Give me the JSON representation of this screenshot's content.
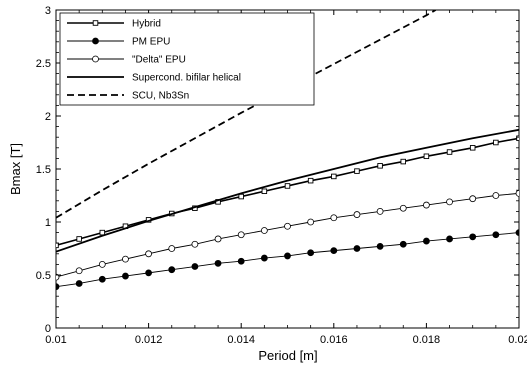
{
  "chart_data": {
    "type": "line",
    "title": "",
    "xlabel": "Period [m]",
    "ylabel": "Bmax [T]",
    "xlim": [
      0.01,
      0.02
    ],
    "ylim": [
      0,
      3
    ],
    "x_ticks": [
      "0.01",
      "0.012",
      "0.014",
      "0.016",
      "0.018",
      "0.02"
    ],
    "y_ticks": [
      "0",
      "0.5",
      "1",
      "1.5",
      "2",
      "2.5",
      "3"
    ],
    "grid": false,
    "legend_position": "top-left",
    "series": [
      {
        "name": "Hybrid",
        "style": "solid-open-square",
        "x": [
          0.01,
          0.0105,
          0.011,
          0.0115,
          0.012,
          0.0125,
          0.013,
          0.0135,
          0.014,
          0.0145,
          0.015,
          0.0155,
          0.016,
          0.0165,
          0.017,
          0.0175,
          0.018,
          0.0185,
          0.019,
          0.0195,
          0.02
        ],
        "y": [
          0.78,
          0.84,
          0.9,
          0.96,
          1.02,
          1.08,
          1.13,
          1.19,
          1.24,
          1.29,
          1.34,
          1.39,
          1.43,
          1.48,
          1.53,
          1.57,
          1.62,
          1.66,
          1.7,
          1.75,
          1.79
        ]
      },
      {
        "name": "PM EPU",
        "style": "solid-filled-circle",
        "x": [
          0.01,
          0.0105,
          0.011,
          0.0115,
          0.012,
          0.0125,
          0.013,
          0.0135,
          0.014,
          0.0145,
          0.015,
          0.0155,
          0.016,
          0.0165,
          0.017,
          0.0175,
          0.018,
          0.0185,
          0.019,
          0.0195,
          0.02
        ],
        "y": [
          0.39,
          0.42,
          0.46,
          0.49,
          0.52,
          0.55,
          0.58,
          0.61,
          0.63,
          0.66,
          0.68,
          0.71,
          0.73,
          0.75,
          0.77,
          0.79,
          0.82,
          0.84,
          0.86,
          0.88,
          0.9
        ]
      },
      {
        "name": "\"Delta\" EPU",
        "style": "solid-open-circle",
        "x": [
          0.01,
          0.0105,
          0.011,
          0.0115,
          0.012,
          0.0125,
          0.013,
          0.0135,
          0.014,
          0.0145,
          0.015,
          0.0155,
          0.016,
          0.0165,
          0.017,
          0.0175,
          0.018,
          0.0185,
          0.019,
          0.0195,
          0.02
        ],
        "y": [
          0.48,
          0.54,
          0.6,
          0.65,
          0.7,
          0.75,
          0.79,
          0.84,
          0.88,
          0.92,
          0.96,
          1.0,
          1.04,
          1.07,
          1.1,
          1.13,
          1.16,
          1.19,
          1.22,
          1.25,
          1.27
        ]
      },
      {
        "name": "Supercond. bifilar helical",
        "style": "solid-thick",
        "x": [
          0.01,
          0.011,
          0.012,
          0.013,
          0.014,
          0.015,
          0.016,
          0.017,
          0.018,
          0.019,
          0.02
        ],
        "y": [
          0.72,
          0.87,
          1.01,
          1.14,
          1.27,
          1.39,
          1.5,
          1.61,
          1.7,
          1.79,
          1.87
        ]
      },
      {
        "name": "SCU, Nb3Sn",
        "style": "dashed",
        "x": [
          0.01,
          0.011,
          0.012,
          0.013,
          0.014,
          0.015,
          0.016,
          0.017,
          0.018,
          0.0182
        ],
        "y": [
          1.04,
          1.3,
          1.55,
          1.79,
          2.03,
          2.26,
          2.49,
          2.72,
          2.95,
          3.0
        ]
      }
    ]
  }
}
